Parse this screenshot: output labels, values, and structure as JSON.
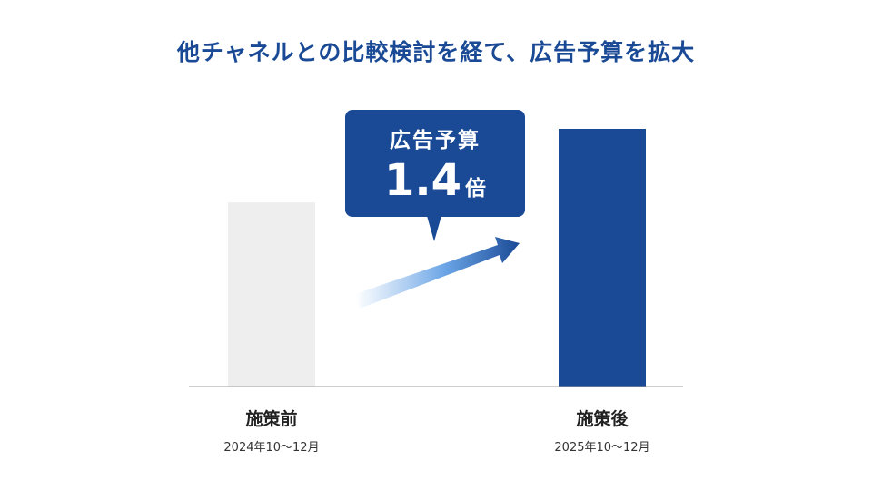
{
  "title": "他チャネルとの比較検討を経て、広告予算を拡大",
  "callout": {
    "label": "広告予算",
    "value": "1.4",
    "unit": "倍"
  },
  "colors": {
    "before_bar": "#eeeeee",
    "after_bar": "#1a4a96",
    "accent": "#1a4a96",
    "axis": "#9e9e9e"
  },
  "chart_data": {
    "type": "bar",
    "categories": [
      "施策前",
      "施策後"
    ],
    "periods": [
      "2024年10〜12月",
      "2025年10〜12月"
    ],
    "values": [
      1.0,
      1.4
    ],
    "ylim": [
      0,
      1.4
    ],
    "grid": false,
    "title": "他チャネルとの比較検討を経て、広告予算を拡大"
  }
}
